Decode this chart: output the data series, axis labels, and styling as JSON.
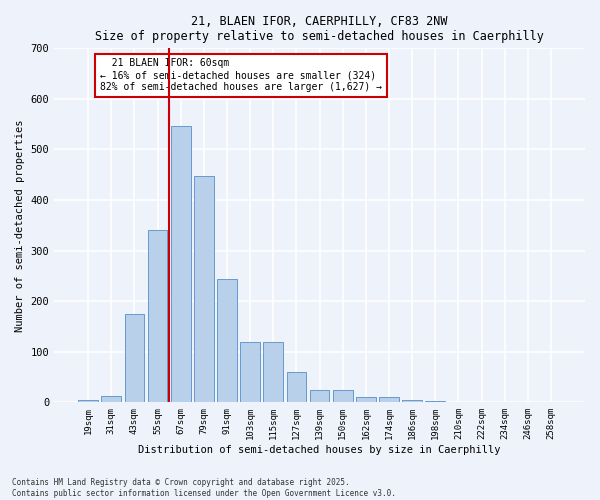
{
  "title1": "21, BLAEN IFOR, CAERPHILLY, CF83 2NW",
  "title2": "Size of property relative to semi-detached houses in Caerphilly",
  "xlabel": "Distribution of semi-detached houses by size in Caerphilly",
  "ylabel": "Number of semi-detached properties",
  "categories": [
    "19sqm",
    "31sqm",
    "43sqm",
    "55sqm",
    "67sqm",
    "79sqm",
    "91sqm",
    "103sqm",
    "115sqm",
    "127sqm",
    "139sqm",
    "150sqm",
    "162sqm",
    "174sqm",
    "186sqm",
    "198sqm",
    "210sqm",
    "222sqm",
    "234sqm",
    "246sqm",
    "258sqm"
  ],
  "values": [
    5,
    13,
    175,
    340,
    547,
    448,
    243,
    120,
    120,
    60,
    25,
    25,
    10,
    10,
    5,
    2,
    1,
    1,
    0,
    0,
    0
  ],
  "bar_color": "#b8d0ea",
  "bar_edge_color": "#6699cc",
  "vline_color": "#cc0000",
  "annotation_title": "21 BLAEN IFOR: 60sqm",
  "annotation_line1": "← 16% of semi-detached houses are smaller (324)",
  "annotation_line2": "82% of semi-detached houses are larger (1,627) →",
  "annotation_box_color": "#cc0000",
  "ylim": [
    0,
    700
  ],
  "yticks": [
    0,
    100,
    200,
    300,
    400,
    500,
    600,
    700
  ],
  "footer": "Contains HM Land Registry data © Crown copyright and database right 2025.\nContains public sector information licensed under the Open Government Licence v3.0.",
  "background_color": "#eef2fb",
  "grid_color": "#ffffff"
}
